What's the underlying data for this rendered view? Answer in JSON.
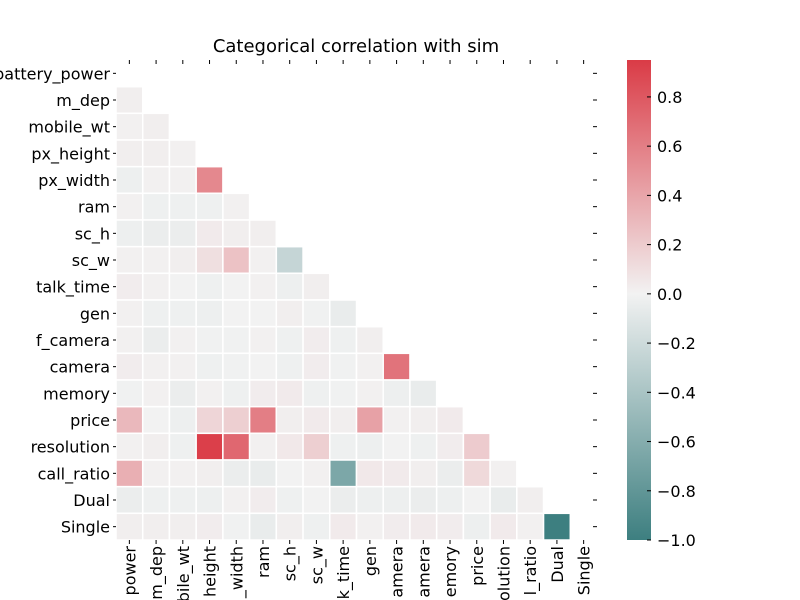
{
  "chart_data": {
    "type": "heatmap",
    "title": "Categorical correlation with sim",
    "variables": [
      "battery_power",
      "m_dep",
      "mobile_wt",
      "px_height",
      "px_width",
      "ram",
      "sc_h",
      "sc_w",
      "talk_time",
      "gen",
      "f_camera",
      "camera",
      "memory",
      "price",
      "resolution",
      "call_ratio",
      "Dual",
      "Single"
    ],
    "x_tick_labels": [
      "power",
      "m_dep",
      "obile_wt",
      "height",
      "_width",
      "ram",
      "sc_h",
      "sc_w",
      "k_time",
      "gen",
      "amera",
      "amera",
      "emory",
      "price",
      "olution",
      "l_ratio",
      "Dual",
      "Single"
    ],
    "mask": "upper-triangle-including-diagonal",
    "values": [
      [],
      [
        0.02
      ],
      [
        0.01,
        0.02
      ],
      [
        0.02,
        0.02,
        0.01
      ],
      [
        -0.03,
        0.01,
        0.01,
        0.55
      ],
      [
        0.01,
        -0.02,
        -0.02,
        -0.02,
        0.01
      ],
      [
        -0.03,
        -0.04,
        -0.04,
        0.04,
        0.02,
        0.02
      ],
      [
        0.01,
        0.01,
        0.02,
        0.1,
        0.25,
        0.01,
        -0.25
      ],
      [
        0.03,
        0.01,
        0.0,
        -0.02,
        0.0,
        0.01,
        -0.03,
        0.02
      ],
      [
        0.01,
        -0.02,
        -0.02,
        -0.03,
        0.0,
        0.0,
        0.02,
        -0.01,
        -0.05
      ],
      [
        0.01,
        -0.04,
        0.01,
        -0.01,
        -0.01,
        0.01,
        -0.02,
        0.03,
        -0.02,
        0.02
      ],
      [
        0.03,
        0.01,
        0.01,
        -0.02,
        -0.01,
        0.0,
        -0.02,
        0.03,
        -0.01,
        0.01,
        0.66
      ],
      [
        -0.01,
        0.01,
        -0.04,
        0.01,
        -0.02,
        0.03,
        0.04,
        -0.02,
        -0.01,
        0.01,
        -0.03,
        -0.05
      ],
      [
        0.3,
        0.0,
        -0.03,
        0.15,
        0.18,
        0.6,
        0.02,
        0.04,
        0.02,
        0.42,
        0.01,
        0.02,
        0.04
      ],
      [
        0.01,
        0.02,
        -0.02,
        0.93,
        0.72,
        0.01,
        0.05,
        0.18,
        -0.02,
        -0.03,
        0.0,
        -0.02,
        0.03,
        0.2
      ],
      [
        0.35,
        0.01,
        0.01,
        0.02,
        -0.04,
        -0.05,
        0.0,
        0.01,
        -0.65,
        0.05,
        0.04,
        0.02,
        -0.04,
        0.13,
        0.01
      ],
      [
        -0.04,
        -0.02,
        -0.02,
        -0.03,
        0.01,
        0.03,
        -0.02,
        0.0,
        -0.04,
        -0.03,
        -0.03,
        -0.04,
        -0.03,
        0.0,
        -0.05,
        0.02
      ],
      [
        0.02,
        0.02,
        0.02,
        0.03,
        -0.01,
        -0.05,
        0.02,
        -0.02,
        0.04,
        0.01,
        0.03,
        0.04,
        0.03,
        -0.03,
        0.04,
        0.01,
        -1.0
      ]
    ],
    "colorbar": {
      "min": -1.0,
      "max": 0.95,
      "ticks": [
        -1.0,
        -0.8,
        -0.6,
        -0.4,
        -0.2,
        0.0,
        0.2,
        0.4,
        0.6,
        0.8
      ],
      "tick_labels": [
        "−1.0",
        "−0.8",
        "−0.6",
        "−0.4",
        "−0.2",
        "0.0",
        "0.2",
        "0.4",
        "0.6",
        "0.8"
      ],
      "negative_color": "#3d7f80",
      "neutral_color": "#f2f2f2",
      "positive_color": "#da3b46"
    },
    "grid_line_color": "#ffffff"
  }
}
